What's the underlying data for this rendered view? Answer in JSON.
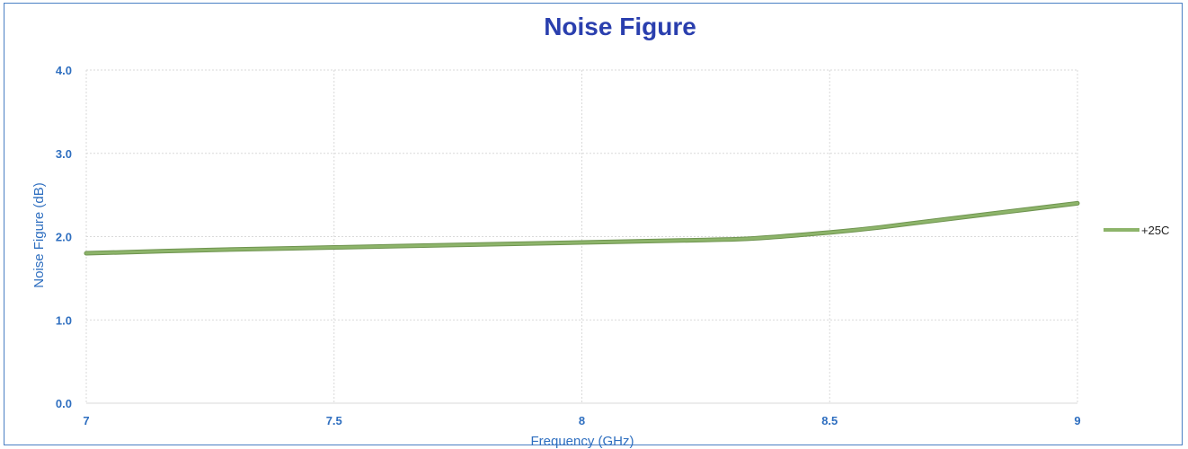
{
  "chart_data": {
    "type": "line",
    "title": "Noise Figure",
    "xlabel": "Frequency (GHz)",
    "ylabel": "Noise Figure (dB)",
    "xlim": [
      7,
      9
    ],
    "ylim": [
      0,
      4
    ],
    "x_ticks": [
      "7",
      "7.5",
      "8",
      "8.5",
      "9"
    ],
    "y_ticks": [
      "0.0",
      "1.0",
      "2.0",
      "3.0",
      "4.0"
    ],
    "grid": true,
    "legend_position": "right",
    "series": [
      {
        "name": "+25C",
        "color": "#8db46a",
        "x": [
          7.0,
          7.25,
          7.5,
          7.75,
          8.0,
          8.25,
          8.35,
          8.5,
          8.6,
          8.75,
          9.0
        ],
        "y": [
          1.8,
          1.84,
          1.87,
          1.9,
          1.93,
          1.96,
          1.98,
          2.05,
          2.11,
          2.22,
          2.4
        ]
      }
    ]
  }
}
